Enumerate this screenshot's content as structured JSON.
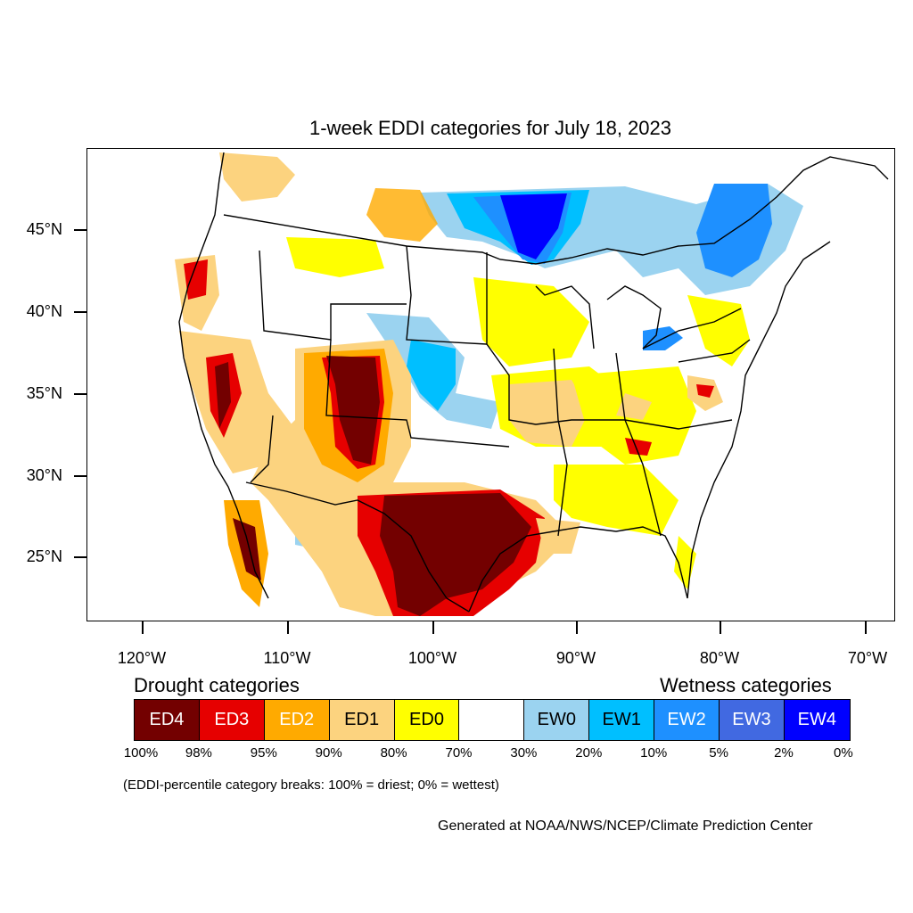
{
  "map": {
    "title": "1-week EDDI categories for July 18, 2023",
    "lat_labels": [
      "45°N",
      "40°N",
      "35°N",
      "30°N",
      "25°N"
    ],
    "lon_labels": [
      "120°W",
      "110°W",
      "100°W",
      "90°W",
      "80°W",
      "70°W"
    ]
  },
  "legend": {
    "drought_heading": "Drought categories",
    "wetness_heading": "Wetness categories",
    "categories": [
      {
        "label": "ED4",
        "color": "#730000",
        "text_color": "#ffffff"
      },
      {
        "label": "ED3",
        "color": "#e60000",
        "text_color": "#ffffff"
      },
      {
        "label": "ED2",
        "color": "#ffaa00",
        "text_color": "#ffffff"
      },
      {
        "label": "ED1",
        "color": "#fcd37f",
        "text_color": "#000000"
      },
      {
        "label": "ED0",
        "color": "#ffff00",
        "text_color": "#000000"
      },
      {
        "label": "",
        "color": "#ffffff",
        "text_color": "#000000"
      },
      {
        "label": "EW0",
        "color": "#9bd3f0",
        "text_color": "#000000"
      },
      {
        "label": "EW1",
        "color": "#00bfff",
        "text_color": "#000000"
      },
      {
        "label": "EW2",
        "color": "#1e90ff",
        "text_color": "#ffffff"
      },
      {
        "label": "EW3",
        "color": "#4169e1",
        "text_color": "#ffffff"
      },
      {
        "label": "EW4",
        "color": "#0000ff",
        "text_color": "#ffffff"
      }
    ],
    "percent_breaks": [
      "100%",
      "98%",
      "95%",
      "90%",
      "80%",
      "70%",
      "30%",
      "20%",
      "10%",
      "5%",
      "2%",
      "0%"
    ],
    "note": "(EDDI-percentile category breaks: 100% = driest; 0% = wettest)"
  },
  "credit": "Generated at NOAA/NWS/NCEP/Climate Prediction Center"
}
